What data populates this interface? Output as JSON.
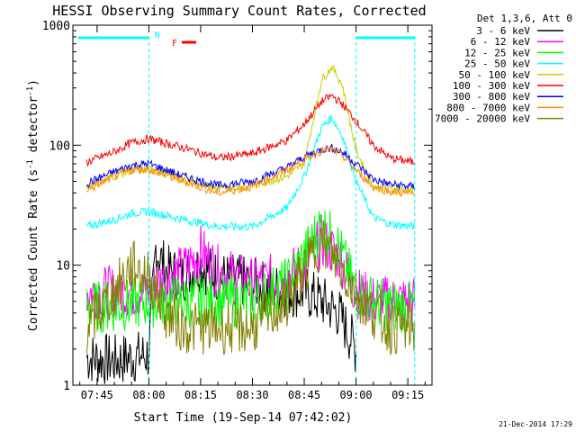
{
  "chart_data": {
    "type": "line",
    "title": "HESSI Observing Summary Count Rates, Corrected",
    "xlabel": "Start Time (19-Sep-14 07:42:02)",
    "ylabel_main": "Corrected Count Rate (s",
    "ylabel_sup1": "-1",
    "ylabel_mid": " detector",
    "ylabel_sup2": "-1",
    "ylabel_end": ")",
    "yscale": "log",
    "ylim": [
      1,
      1000
    ],
    "xlim": [
      "07:38",
      "09:22"
    ],
    "x_ticks": [
      "07:45",
      "08:00",
      "08:15",
      "08:30",
      "08:45",
      "09:00",
      "09:15"
    ],
    "x_tick_minutes": [
      465,
      480,
      495,
      510,
      525,
      540,
      555
    ],
    "y_ticks": [
      "1",
      "10",
      "100",
      "1000"
    ],
    "y_tick_values": [
      1,
      10,
      100,
      1000
    ],
    "legend_title": "Det 1,3,6, Att 0",
    "legend_position": "outside-right",
    "markers": {
      "night_label": "N",
      "flare_label": "F",
      "night_start": "08:00",
      "night_end": "09:00",
      "span_end": "09:17"
    },
    "footer_date": "21-Dec-2014 17:29",
    "series": [
      {
        "name": "3 - 6 keV",
        "color": "#000000",
        "x": [
          "07:42",
          "07:50",
          "07:55",
          "08:00",
          "08:02",
          "08:05",
          "08:10",
          "08:15",
          "08:20",
          "08:30",
          "08:40",
          "08:45",
          "08:50",
          "08:55",
          "09:00"
        ],
        "y": [
          1.7,
          1.6,
          1.7,
          1.8,
          14,
          9,
          8,
          10,
          8,
          7,
          6,
          6,
          5,
          4,
          2
        ]
      },
      {
        "name": "6 - 12 keV",
        "color": "#ff00ff",
        "x": [
          "07:42",
          "07:50",
          "08:00",
          "08:05",
          "08:10",
          "08:15",
          "08:20",
          "08:30",
          "08:40",
          "08:45",
          "08:50",
          "08:55",
          "09:00",
          "09:05",
          "09:10",
          "09:17"
        ],
        "y": [
          6,
          6,
          6,
          8,
          9,
          13,
          9,
          7,
          8,
          10,
          16,
          12,
          6,
          5,
          5,
          5
        ]
      },
      {
        "name": "12 - 25 keV",
        "color": "#00ff00",
        "x": [
          "07:42",
          "07:50",
          "08:00",
          "08:10",
          "08:20",
          "08:30",
          "08:40",
          "08:45",
          "08:50",
          "08:55",
          "09:00",
          "09:05",
          "09:10",
          "09:17"
        ],
        "y": [
          4.5,
          4.5,
          5,
          5,
          5,
          5,
          7,
          12,
          22,
          14,
          6,
          5,
          4.5,
          4.5
        ]
      },
      {
        "name": "25 - 50 keV",
        "color": "#00ffff",
        "x": [
          "07:42",
          "07:50",
          "07:55",
          "08:00",
          "08:10",
          "08:20",
          "08:30",
          "08:40",
          "08:45",
          "08:50",
          "08:53",
          "08:56",
          "09:00",
          "09:05",
          "09:10",
          "09:17"
        ],
        "y": [
          21,
          24,
          27,
          28,
          24,
          21,
          21,
          30,
          55,
          140,
          170,
          120,
          50,
          25,
          22,
          21
        ]
      },
      {
        "name": "50 - 100 keV",
        "color": "#cccc00",
        "x": [
          "07:42",
          "07:50",
          "07:55",
          "08:00",
          "08:10",
          "08:20",
          "08:30",
          "08:40",
          "08:45",
          "08:50",
          "08:53",
          "08:56",
          "09:00",
          "09:05",
          "09:10",
          "09:17"
        ],
        "y": [
          45,
          55,
          62,
          63,
          52,
          44,
          46,
          55,
          70,
          350,
          450,
          320,
          90,
          45,
          43,
          42
        ]
      },
      {
        "name": "100 - 300 keV",
        "color": "#ff0000",
        "x": [
          "07:42",
          "07:50",
          "07:55",
          "08:00",
          "08:10",
          "08:20",
          "08:30",
          "08:40",
          "08:45",
          "08:50",
          "08:53",
          "08:56",
          "09:00",
          "09:05",
          "09:10",
          "09:17"
        ],
        "y": [
          72,
          88,
          105,
          113,
          95,
          78,
          85,
          110,
          150,
          230,
          260,
          220,
          160,
          100,
          78,
          72
        ]
      },
      {
        "name": "300 - 800 keV",
        "color": "#0000ff",
        "x": [
          "07:42",
          "07:50",
          "07:55",
          "08:00",
          "08:10",
          "08:20",
          "08:30",
          "08:40",
          "08:45",
          "08:50",
          "08:53",
          "08:56",
          "09:00",
          "09:05",
          "09:10",
          "09:17"
        ],
        "y": [
          48,
          60,
          68,
          70,
          55,
          46,
          50,
          65,
          80,
          92,
          95,
          88,
          70,
          52,
          47,
          45
        ]
      },
      {
        "name": "800 - 7000 keV",
        "color": "#ff8c00",
        "x": [
          "07:42",
          "07:50",
          "07:55",
          "08:00",
          "08:10",
          "08:20",
          "08:30",
          "08:40",
          "08:45",
          "08:50",
          "08:53",
          "08:56",
          "09:00",
          "09:05",
          "09:10",
          "09:17"
        ],
        "y": [
          42,
          55,
          62,
          63,
          50,
          40,
          45,
          62,
          76,
          90,
          92,
          82,
          62,
          45,
          41,
          39
        ]
      },
      {
        "name": "7000 - 20000 keV",
        "color": "#808000",
        "x": [
          "07:42",
          "07:50",
          "07:55",
          "08:00",
          "08:05",
          "08:10",
          "08:20",
          "08:30",
          "08:40",
          "08:45",
          "08:50",
          "08:55",
          "09:00",
          "09:05",
          "09:10",
          "09:17"
        ],
        "y": [
          3,
          6,
          10,
          8,
          4,
          3,
          3,
          3,
          5,
          9,
          16,
          10,
          6,
          4,
          3,
          3
        ]
      }
    ]
  }
}
